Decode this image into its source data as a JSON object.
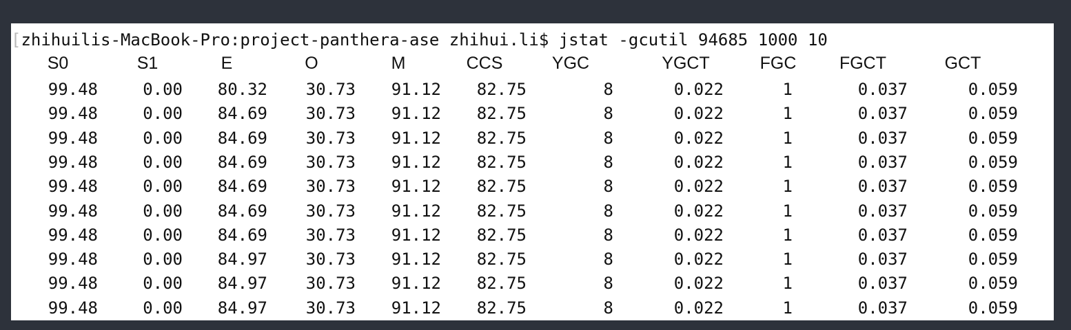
{
  "terminal": {
    "prompt_bracket": "[",
    "prompt": "zhihuilis-MacBook-Pro:project-panthera-ase zhihui.li$",
    "command": "jstat -gcutil 94685 1000 10"
  },
  "table": {
    "headers": [
      "S0",
      "S1",
      "E",
      "O",
      "M",
      "CCS",
      "YGC",
      "YGCT",
      "FGC",
      "FGCT",
      "GCT"
    ],
    "rows": [
      [
        "99.48",
        "0.00",
        "80.32",
        "30.73",
        "91.12",
        "82.75",
        "8",
        "0.022",
        "1",
        "0.037",
        "0.059"
      ],
      [
        "99.48",
        "0.00",
        "84.69",
        "30.73",
        "91.12",
        "82.75",
        "8",
        "0.022",
        "1",
        "0.037",
        "0.059"
      ],
      [
        "99.48",
        "0.00",
        "84.69",
        "30.73",
        "91.12",
        "82.75",
        "8",
        "0.022",
        "1",
        "0.037",
        "0.059"
      ],
      [
        "99.48",
        "0.00",
        "84.69",
        "30.73",
        "91.12",
        "82.75",
        "8",
        "0.022",
        "1",
        "0.037",
        "0.059"
      ],
      [
        "99.48",
        "0.00",
        "84.69",
        "30.73",
        "91.12",
        "82.75",
        "8",
        "0.022",
        "1",
        "0.037",
        "0.059"
      ],
      [
        "99.48",
        "0.00",
        "84.69",
        "30.73",
        "91.12",
        "82.75",
        "8",
        "0.022",
        "1",
        "0.037",
        "0.059"
      ],
      [
        "99.48",
        "0.00",
        "84.69",
        "30.73",
        "91.12",
        "82.75",
        "8",
        "0.022",
        "1",
        "0.037",
        "0.059"
      ],
      [
        "99.48",
        "0.00",
        "84.97",
        "30.73",
        "91.12",
        "82.75",
        "8",
        "0.022",
        "1",
        "0.037",
        "0.059"
      ],
      [
        "99.48",
        "0.00",
        "84.97",
        "30.73",
        "91.12",
        "82.75",
        "8",
        "0.022",
        "1",
        "0.037",
        "0.059"
      ],
      [
        "99.48",
        "0.00",
        "84.97",
        "30.73",
        "91.12",
        "82.75",
        "8",
        "0.022",
        "1",
        "0.037",
        "0.059"
      ]
    ]
  },
  "colors": {
    "frame_background": "#2d323b",
    "terminal_background": "#ffffff",
    "text": "#111111"
  }
}
